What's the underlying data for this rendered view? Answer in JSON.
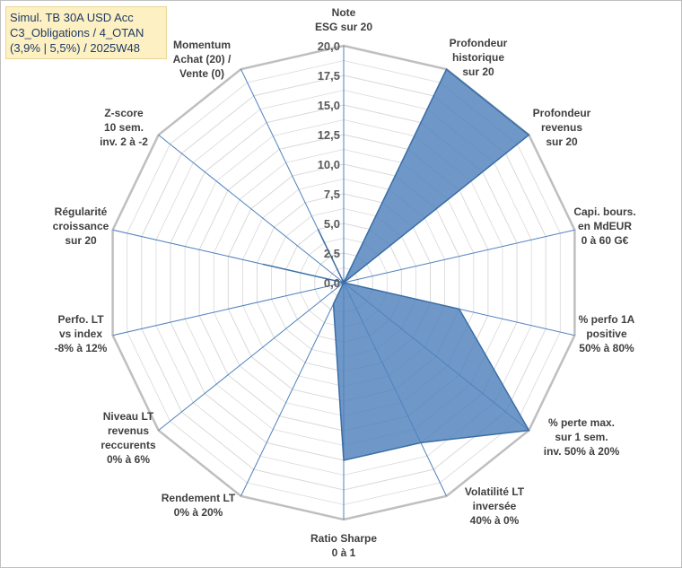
{
  "title_lines": [
    "Simul. TB 30A USD Acc",
    "C3_Obligations / 4_OTAN",
    "(3,9% | 5,5%) / 2025W48"
  ],
  "chart_data": {
    "type": "radar",
    "rmin": 0,
    "rmax": 20,
    "ticks": [
      "0,0",
      "2,5",
      "5,0",
      "7,5",
      "10,0",
      "12,5",
      "15,0",
      "17,5",
      "20,0"
    ],
    "grid": true,
    "colors": {
      "fill": "#4f81bd",
      "stroke": "#3a6ea5",
      "grid": "#d9d9d9",
      "spoke": "#4f81bd"
    },
    "axes": [
      {
        "label": [
          "Note",
          "ESG sur 20"
        ],
        "value": 0
      },
      {
        "label": [
          "Profondeur",
          "historique",
          "sur 20"
        ],
        "value": 20
      },
      {
        "label": [
          "Profondeur",
          "revenus",
          "sur 20"
        ],
        "value": 20
      },
      {
        "label": [
          "Capi. bours.",
          "en MdEUR",
          "0 à 60 G€"
        ],
        "value": 0
      },
      {
        "label": [
          "% perfo 1A",
          "positive",
          "50% à 80%"
        ],
        "value": 10
      },
      {
        "label": [
          "% perte max.",
          "sur 1 sem.",
          "inv. 50% à 20%"
        ],
        "value": 20
      },
      {
        "label": [
          "Volatilité LT",
          "inversée",
          "40% à 0%"
        ],
        "value": 15
      },
      {
        "label": [
          "Ratio Sharpe",
          "0 à 1"
        ],
        "value": 15
      },
      {
        "label": [
          "Rendement LT",
          "0% à 20%"
        ],
        "value": 2
      },
      {
        "label": [
          "Niveau LT",
          "revenus",
          "reccurents",
          "0% à 6%"
        ],
        "value": 0
      },
      {
        "label": [
          "Perfo. LT",
          "vs index",
          "-8% à 12%"
        ],
        "value": 0
      },
      {
        "label": [
          "Régularité",
          "croissance",
          "sur 20"
        ],
        "value": 7
      },
      {
        "label": [
          "Z-score",
          "10 sem.",
          "inv. 2 à -2"
        ],
        "value": 0
      },
      {
        "label": [
          "Momentum",
          "Achat (20) /",
          "Vente (0)"
        ],
        "value": 5
      }
    ]
  }
}
